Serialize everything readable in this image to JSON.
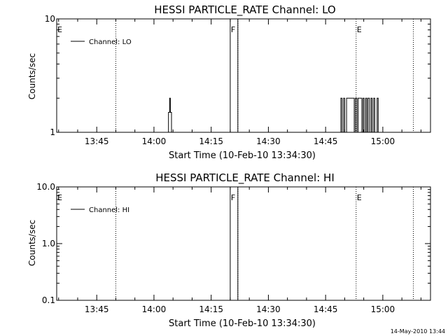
{
  "chart_data": [
    {
      "type": "line",
      "title": "HESSI PARTICLE_RATE Channel: LO",
      "xlabel": "Start Time (10-Feb-10 13:34:30)",
      "ylabel": "Counts/sec",
      "x_tick_labels": [
        "13:45",
        "14:00",
        "14:15",
        "14:30",
        "14:45",
        "15:00"
      ],
      "y_scale": "log",
      "ylim": [
        1,
        10
      ],
      "y_tick_labels": [
        "1",
        "10"
      ],
      "xlim_minutes": [
        0,
        98
      ],
      "legend": {
        "placement": "top-left",
        "entries": [
          "Channel: LO"
        ]
      },
      "flags": [
        {
          "label": "E",
          "time_minutes": 0,
          "line": false
        },
        {
          "label": "",
          "time_minutes": 15.5,
          "line": true
        },
        {
          "label": "F",
          "time_minutes": 45.5,
          "line": true
        },
        {
          "label": "",
          "time_minutes": 47.5,
          "line": true
        },
        {
          "label": "E",
          "time_minutes": 78.5,
          "line": true
        },
        {
          "label": "",
          "time_minutes": 93.5,
          "line": true
        }
      ],
      "series": [
        {
          "name": "Channel: LO",
          "points": [
            [
              0,
              1
            ],
            [
              29.3,
              1
            ],
            [
              29.3,
              1.5
            ],
            [
              29.6,
              1.5
            ],
            [
              29.6,
              2
            ],
            [
              29.8,
              2
            ],
            [
              29.8,
              1.5
            ],
            [
              30.1,
              1.5
            ],
            [
              30.1,
              1
            ],
            [
              45.5,
              1
            ],
            [
              45.5,
              10
            ],
            [
              47.5,
              10
            ],
            [
              47.5,
              1
            ],
            [
              74.5,
              1
            ],
            [
              74.5,
              2
            ],
            [
              74.8,
              2
            ],
            [
              74.8,
              1
            ],
            [
              75.2,
              1
            ],
            [
              75.2,
              2
            ],
            [
              75.5,
              2
            ],
            [
              75.5,
              1
            ],
            [
              76.0,
              1
            ],
            [
              76.0,
              2
            ],
            [
              78.0,
              2
            ],
            [
              78.0,
              1
            ],
            [
              78.3,
              1
            ],
            [
              78.3,
              2
            ],
            [
              78.7,
              2
            ],
            [
              78.7,
              1
            ],
            [
              79.0,
              1
            ],
            [
              79.0,
              2
            ],
            [
              80.0,
              2
            ],
            [
              80.0,
              1
            ],
            [
              80.3,
              1
            ],
            [
              80.3,
              2
            ],
            [
              80.6,
              2
            ],
            [
              80.6,
              1
            ],
            [
              81.0,
              1
            ],
            [
              81.0,
              2
            ],
            [
              81.3,
              2
            ],
            [
              81.3,
              1
            ],
            [
              81.6,
              1
            ],
            [
              81.6,
              2
            ],
            [
              82.0,
              2
            ],
            [
              82.0,
              1
            ],
            [
              82.4,
              1
            ],
            [
              82.4,
              2
            ],
            [
              82.7,
              2
            ],
            [
              82.7,
              1
            ],
            [
              83.1,
              1
            ],
            [
              83.1,
              2
            ],
            [
              83.4,
              2
            ],
            [
              83.4,
              1
            ],
            [
              84.0,
              1
            ],
            [
              84.0,
              2
            ],
            [
              84.3,
              2
            ],
            [
              84.3,
              1
            ],
            [
              98,
              1
            ]
          ]
        }
      ]
    },
    {
      "type": "line",
      "title": "HESSI PARTICLE_RATE Channel: HI",
      "xlabel": "Start Time (10-Feb-10 13:34:30)",
      "ylabel": "Counts/sec",
      "x_tick_labels": [
        "13:45",
        "14:00",
        "14:15",
        "14:30",
        "14:45",
        "15:00"
      ],
      "y_scale": "log",
      "ylim": [
        0.1,
        10
      ],
      "y_tick_labels": [
        "0.1",
        "1.0",
        "10.0"
      ],
      "xlim_minutes": [
        0,
        98
      ],
      "legend": {
        "placement": "top-left",
        "entries": [
          "Channel: HI"
        ]
      },
      "flags": [
        {
          "label": "E",
          "time_minutes": 0,
          "line": false
        },
        {
          "label": "",
          "time_minutes": 15.5,
          "line": true
        },
        {
          "label": "F",
          "time_minutes": 45.5,
          "line": true
        },
        {
          "label": "",
          "time_minutes": 47.5,
          "line": true
        },
        {
          "label": "E",
          "time_minutes": 78.5,
          "line": true
        },
        {
          "label": "",
          "time_minutes": 93.5,
          "line": true
        }
      ],
      "series": [
        {
          "name": "Channel: HI",
          "points": [
            [
              45.5,
              0.1
            ],
            [
              45.5,
              10
            ],
            [
              47.5,
              10
            ],
            [
              47.5,
              0.1
            ]
          ]
        }
      ]
    }
  ],
  "footer": "14-May-2010 13:44"
}
